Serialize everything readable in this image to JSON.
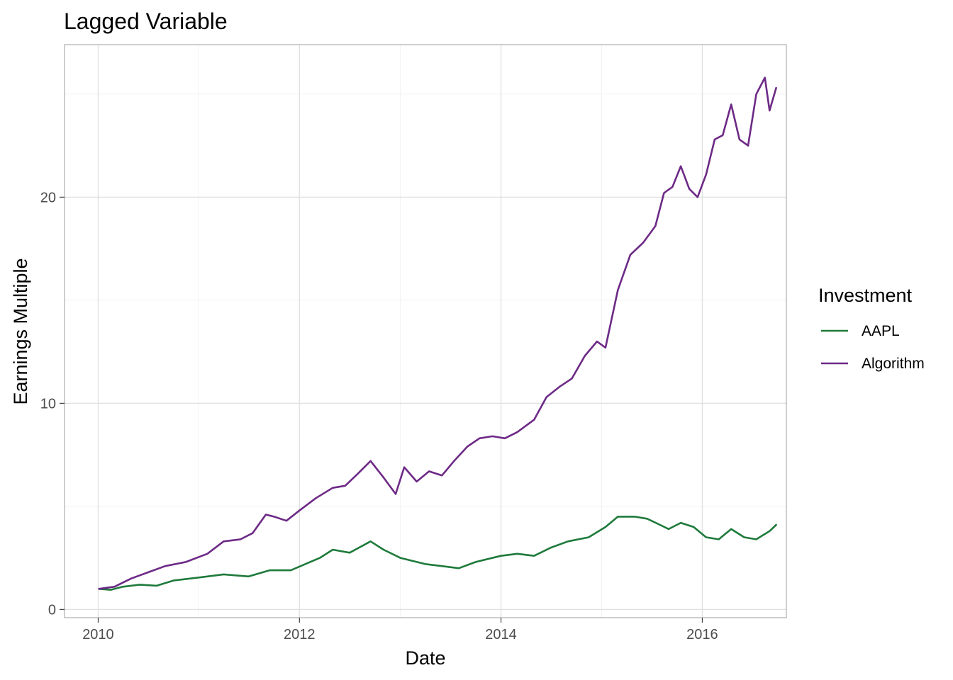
{
  "chart_data": {
    "type": "line",
    "title": "Lagged Variable",
    "xlabel": "Date",
    "ylabel": "Earnings Multiple",
    "x_tick_labels": [
      "2010",
      "2012",
      "2014",
      "2016"
    ],
    "x_ticks": [
      "2010-01-01",
      "2012-01-01",
      "2014-01-01",
      "2016-01-01"
    ],
    "y_tick_labels": [
      "0",
      "10",
      "20"
    ],
    "y_ticks": [
      0,
      10,
      20
    ],
    "xlim": [
      "2009-09-01",
      "2016-11-01"
    ],
    "ylim": [
      -0.4,
      27.4
    ],
    "grid": true,
    "legend": {
      "title": "Investment",
      "position": "right"
    },
    "series": [
      {
        "name": "AAPL",
        "color": "#1f7a3b",
        "x": [
          "2010-01-04",
          "2010-02-15",
          "2010-04-01",
          "2010-06-01",
          "2010-08-01",
          "2010-10-01",
          "2011-01-01",
          "2011-04-01",
          "2011-07-01",
          "2011-09-15",
          "2011-12-01",
          "2012-03-15",
          "2012-05-01",
          "2012-07-01",
          "2012-09-15",
          "2012-11-01",
          "2013-01-01",
          "2013-04-01",
          "2013-06-01",
          "2013-08-01",
          "2013-10-01",
          "2014-01-01",
          "2014-03-01",
          "2014-05-01",
          "2014-07-01",
          "2014-09-01",
          "2014-11-15",
          "2015-01-15",
          "2015-03-01",
          "2015-05-01",
          "2015-06-15",
          "2015-08-01",
          "2015-09-01",
          "2015-10-15",
          "2015-12-01",
          "2016-01-15",
          "2016-03-01",
          "2016-04-15",
          "2016-06-01",
          "2016-07-15",
          "2016-09-01",
          "2016-09-25"
        ],
        "values": [
          1.0,
          0.95,
          1.1,
          1.2,
          1.15,
          1.4,
          1.55,
          1.7,
          1.6,
          1.9,
          1.9,
          2.5,
          2.9,
          2.75,
          3.3,
          2.9,
          2.5,
          2.2,
          2.1,
          2.0,
          2.3,
          2.6,
          2.7,
          2.6,
          3.0,
          3.3,
          3.5,
          4.0,
          4.5,
          4.5,
          4.4,
          4.1,
          3.9,
          4.2,
          4.0,
          3.5,
          3.4,
          3.9,
          3.5,
          3.4,
          3.8,
          4.1
        ]
      },
      {
        "name": "Algorithm",
        "color": "#6d2a86",
        "x": [
          "2010-01-04",
          "2010-03-01",
          "2010-05-01",
          "2010-07-01",
          "2010-09-01",
          "2010-11-15",
          "2011-02-01",
          "2011-04-01",
          "2011-06-01",
          "2011-07-15",
          "2011-09-01",
          "2011-10-01",
          "2011-11-15",
          "2012-01-01",
          "2012-03-01",
          "2012-05-01",
          "2012-06-15",
          "2012-08-01",
          "2012-09-15",
          "2012-11-01",
          "2012-12-15",
          "2013-01-15",
          "2013-03-01",
          "2013-04-15",
          "2013-06-01",
          "2013-07-15",
          "2013-09-01",
          "2013-10-15",
          "2013-12-01",
          "2014-01-15",
          "2014-03-01",
          "2014-05-01",
          "2014-06-15",
          "2014-08-01",
          "2014-09-15",
          "2014-11-01",
          "2014-12-15",
          "2015-01-15",
          "2015-03-01",
          "2015-04-15",
          "2015-06-01",
          "2015-07-15",
          "2015-08-15",
          "2015-09-15",
          "2015-10-15",
          "2015-11-15",
          "2015-12-15",
          "2016-01-15",
          "2016-02-15",
          "2016-03-15",
          "2016-04-15",
          "2016-05-15",
          "2016-06-15",
          "2016-07-15",
          "2016-08-15",
          "2016-09-01",
          "2016-09-25"
        ],
        "values": [
          1.0,
          1.1,
          1.5,
          1.8,
          2.1,
          2.3,
          2.7,
          3.3,
          3.4,
          3.7,
          4.6,
          4.5,
          4.3,
          4.8,
          5.4,
          5.9,
          6.0,
          6.6,
          7.2,
          6.4,
          5.6,
          6.9,
          6.2,
          6.7,
          6.5,
          7.2,
          7.9,
          8.3,
          8.4,
          8.3,
          8.6,
          9.2,
          10.3,
          10.8,
          11.2,
          12.3,
          13.0,
          12.7,
          15.5,
          17.2,
          17.8,
          18.6,
          20.2,
          20.5,
          21.5,
          20.4,
          20.0,
          21.1,
          22.8,
          23.0,
          24.5,
          22.8,
          22.5,
          25.0,
          25.8,
          24.2,
          25.3
        ]
      }
    ]
  }
}
